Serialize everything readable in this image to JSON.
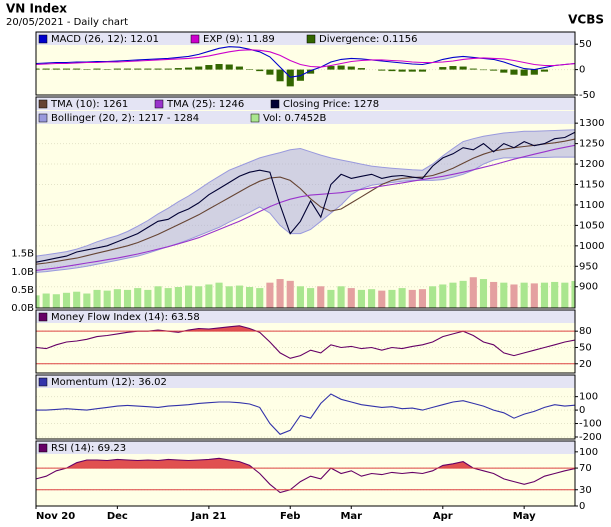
{
  "header": {
    "title": "VN Index",
    "subtitle": "20/05/2021 - Daily chart",
    "brand": "VCBS"
  },
  "chart_data": [
    {
      "type": "line",
      "ylim": [
        -50,
        74
      ],
      "yticks": [
        50,
        0,
        -50
      ],
      "series": [
        {
          "name": "MACD (26, 12): 12.01",
          "color": "#0000cc",
          "values": [
            12,
            13,
            14,
            14,
            15,
            15,
            16,
            16,
            17,
            18,
            19,
            20,
            21,
            22,
            24,
            26,
            30,
            36,
            42,
            45,
            44,
            40,
            35,
            25,
            5,
            -15,
            -12,
            -2,
            5,
            15,
            20,
            22,
            21,
            19,
            17,
            15,
            13,
            11,
            10,
            14,
            20,
            24,
            26,
            24,
            22,
            20,
            15,
            8,
            2,
            0,
            4,
            8,
            10,
            12.01
          ]
        },
        {
          "name": "EXP (9): 11.89",
          "color": "#cc00cc",
          "values": [
            10,
            11,
            12,
            12,
            13,
            14,
            14,
            15,
            15,
            16,
            17,
            18,
            19,
            20,
            21,
            22,
            24,
            27,
            31,
            35,
            38,
            39,
            38,
            35,
            28,
            18,
            10,
            6,
            5,
            8,
            12,
            16,
            18,
            19,
            19,
            18,
            17,
            15,
            14,
            14,
            15,
            17,
            20,
            22,
            23,
            22,
            21,
            18,
            14,
            10,
            8,
            8,
            10,
            11.89
          ]
        },
        {
          "name": "Divergence: 0.1156",
          "color": "#336600",
          "kind": "bar",
          "values": [
            2,
            2,
            2,
            2,
            2,
            1,
            2,
            1,
            2,
            2,
            2,
            2,
            2,
            2,
            3,
            4,
            6,
            9,
            11,
            10,
            6,
            1,
            -3,
            -10,
            -23,
            -33,
            -22,
            -8,
            0,
            7,
            8,
            6,
            3,
            0,
            -2,
            -3,
            -4,
            -4,
            -4,
            0,
            5,
            7,
            6,
            2,
            -1,
            -2,
            -6,
            -10,
            -12,
            -10,
            -4,
            0,
            0,
            0.1156
          ]
        }
      ]
    },
    {
      "type": "line",
      "ylim": [
        848,
        1364
      ],
      "yticks": [
        1300,
        1250,
        1200,
        1150,
        1100,
        1050,
        1000,
        950,
        900
      ],
      "y2lim": [
        0,
        5.83
      ],
      "y2ticks": [
        {
          "value": 1.5,
          "label": "1.5B"
        },
        {
          "value": 1.0,
          "label": "1.0B"
        },
        {
          "value": 0.5,
          "label": "0.5B"
        },
        {
          "value": 0,
          "label": "0.0B"
        }
      ],
      "series": [
        {
          "name": "TMA (10): 1261",
          "color": "#664433",
          "values": [
            955,
            958,
            962,
            966,
            970,
            976,
            982,
            988,
            994,
            1000,
            1008,
            1018,
            1028,
            1040,
            1052,
            1064,
            1076,
            1090,
            1104,
            1118,
            1132,
            1146,
            1158,
            1166,
            1168,
            1160,
            1140,
            1115,
            1095,
            1085,
            1090,
            1105,
            1120,
            1135,
            1150,
            1160,
            1165,
            1167,
            1168,
            1172,
            1180,
            1190,
            1202,
            1214,
            1224,
            1232,
            1236,
            1240,
            1243,
            1246,
            1249,
            1252,
            1256,
            1261
          ]
        },
        {
          "name": "TMA (25): 1246",
          "color": "#9933cc",
          "values": [
            940,
            943,
            946,
            950,
            954,
            958,
            962,
            966,
            970,
            975,
            980,
            986,
            992,
            998,
            1005,
            1012,
            1020,
            1030,
            1040,
            1050,
            1060,
            1072,
            1084,
            1096,
            1106,
            1114,
            1120,
            1124,
            1126,
            1128,
            1130,
            1134,
            1138,
            1142,
            1146,
            1150,
            1154,
            1158,
            1162,
            1166,
            1170,
            1175,
            1180,
            1186,
            1192,
            1198,
            1205,
            1212,
            1218,
            1224,
            1230,
            1236,
            1241,
            1246
          ]
        },
        {
          "name": "Closing Price: 1278",
          "color": "#000033",
          "values": [
            960,
            965,
            970,
            975,
            985,
            990,
            995,
            1000,
            1010,
            1020,
            1030,
            1045,
            1060,
            1065,
            1080,
            1090,
            1105,
            1125,
            1140,
            1155,
            1170,
            1180,
            1185,
            1180,
            1100,
            1030,
            1060,
            1110,
            1070,
            1150,
            1175,
            1165,
            1170,
            1175,
            1165,
            1170,
            1172,
            1168,
            1165,
            1195,
            1215,
            1225,
            1240,
            1235,
            1250,
            1230,
            1250,
            1240,
            1255,
            1245,
            1250,
            1262,
            1265,
            1278
          ]
        },
        {
          "name": "Bollinger (20, 2): 1217 - 1284",
          "color": "#9999dd",
          "kind": "band",
          "upper": [
            975,
            978,
            982,
            986,
            992,
            1000,
            1010,
            1018,
            1025,
            1035,
            1048,
            1062,
            1078,
            1092,
            1108,
            1122,
            1138,
            1155,
            1170,
            1185,
            1195,
            1205,
            1215,
            1222,
            1228,
            1235,
            1238,
            1230,
            1222,
            1215,
            1210,
            1205,
            1200,
            1195,
            1192,
            1190,
            1188,
            1186,
            1185,
            1200,
            1220,
            1238,
            1255,
            1262,
            1268,
            1272,
            1276,
            1278,
            1280,
            1280,
            1281,
            1282,
            1283,
            1284
          ],
          "lower": [
            935,
            937,
            940,
            943,
            946,
            950,
            955,
            960,
            965,
            970,
            975,
            982,
            990,
            998,
            1006,
            1015,
            1025,
            1035,
            1045,
            1058,
            1070,
            1082,
            1095,
            1080,
            1050,
            1030,
            1030,
            1040,
            1060,
            1080,
            1100,
            1125,
            1140,
            1148,
            1152,
            1155,
            1158,
            1160,
            1160,
            1160,
            1162,
            1168,
            1175,
            1185,
            1200,
            1210,
            1215,
            1215,
            1216,
            1216,
            1216,
            1217,
            1217,
            1217
          ]
        },
        {
          "name": "Vol: 0.7452B",
          "color": "#aae68f",
          "down_color": "#e4a0a0",
          "kind": "bar",
          "axis": "y2",
          "values": [
            0.35,
            0.4,
            0.38,
            0.42,
            0.45,
            0.4,
            0.5,
            0.48,
            0.52,
            0.5,
            0.55,
            0.5,
            0.6,
            0.55,
            0.58,
            0.62,
            0.6,
            0.65,
            0.7,
            0.6,
            0.62,
            0.58,
            0.55,
            0.7,
            0.8,
            0.75,
            0.6,
            0.55,
            0.6,
            0.5,
            0.6,
            0.55,
            0.5,
            0.52,
            0.48,
            0.5,
            0.55,
            0.5,
            0.52,
            0.6,
            0.65,
            0.7,
            0.75,
            0.85,
            0.8,
            0.72,
            0.7,
            0.65,
            0.7,
            0.68,
            0.7,
            0.72,
            0.7,
            0.7452
          ]
        }
      ]
    },
    {
      "type": "line",
      "ylim": [
        3,
        119
      ],
      "yticks": [
        80,
        50,
        20
      ],
      "ref_lines": [
        80,
        20
      ],
      "ref_color": "#dd4444",
      "series": [
        {
          "name": "Money Flow Index (14): 63.58",
          "color": "#660066",
          "fill_color": "#e05050",
          "values": [
            50,
            48,
            55,
            60,
            62,
            65,
            70,
            72,
            75,
            78,
            80,
            80,
            82,
            80,
            78,
            82,
            85,
            84,
            86,
            88,
            90,
            85,
            78,
            60,
            40,
            30,
            35,
            45,
            40,
            55,
            50,
            52,
            48,
            50,
            45,
            50,
            48,
            52,
            55,
            60,
            70,
            75,
            80,
            72,
            60,
            55,
            40,
            35,
            40,
            45,
            50,
            55,
            60,
            63.58
          ]
        }
      ]
    },
    {
      "type": "line",
      "ylim": [
        -215,
        261
      ],
      "yticks": [
        100,
        0,
        -100,
        -200
      ],
      "series": [
        {
          "name": "Momentum (12): 36.02",
          "color": "#3333aa",
          "values": [
            0,
            0,
            5,
            10,
            5,
            0,
            10,
            20,
            30,
            35,
            30,
            25,
            20,
            30,
            35,
            40,
            50,
            55,
            60,
            60,
            55,
            45,
            20,
            -100,
            -180,
            -150,
            -40,
            -60,
            50,
            120,
            80,
            60,
            40,
            30,
            20,
            25,
            10,
            15,
            0,
            20,
            40,
            60,
            70,
            50,
            30,
            0,
            -20,
            -60,
            -30,
            -10,
            20,
            40,
            30,
            36.02
          ]
        }
      ]
    },
    {
      "type": "line",
      "ylim": [
        0,
        120
      ],
      "yticks": [
        100,
        70,
        30,
        0
      ],
      "ref_lines": [
        70,
        30
      ],
      "ref_color": "#dd4444",
      "categories": [
        "Nov 20",
        null,
        null,
        null,
        null,
        null,
        null,
        null,
        "Dec",
        null,
        null,
        null,
        null,
        null,
        null,
        null,
        null,
        "Jan 21",
        null,
        null,
        null,
        null,
        null,
        null,
        null,
        "Feb",
        null,
        null,
        null,
        null,
        null,
        "Mar",
        null,
        null,
        null,
        null,
        null,
        null,
        null,
        null,
        "Apr",
        null,
        null,
        null,
        null,
        null,
        null,
        null,
        "May",
        null,
        null,
        null,
        null,
        null
      ],
      "series": [
        {
          "name": "RSI (14): 69.23",
          "color": "#660066",
          "fill_color": "#e05050",
          "values": [
            50,
            55,
            65,
            70,
            80,
            85,
            85,
            84,
            86,
            85,
            84,
            85,
            84,
            86,
            85,
            84,
            85,
            86,
            88,
            85,
            82,
            75,
            60,
            40,
            25,
            30,
            45,
            55,
            50,
            70,
            60,
            65,
            55,
            60,
            58,
            62,
            60,
            62,
            60,
            65,
            75,
            78,
            82,
            70,
            65,
            60,
            50,
            45,
            40,
            45,
            55,
            60,
            65,
            69.23
          ]
        }
      ]
    }
  ]
}
